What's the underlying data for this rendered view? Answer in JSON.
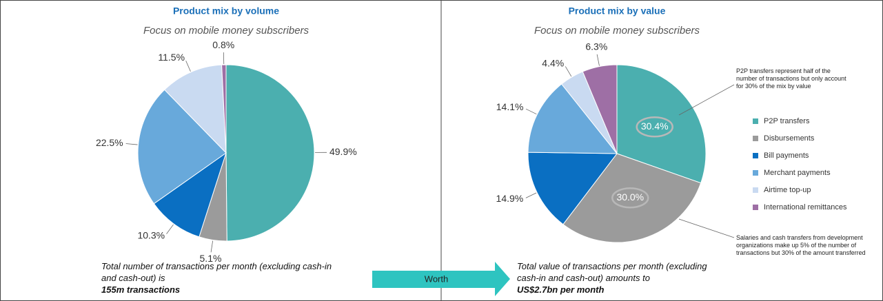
{
  "chart_data": [
    {
      "type": "pie",
      "title": "Product mix by volume",
      "subtitle": "Focus on mobile money subscribers",
      "values": [
        49.9,
        5.1,
        10.3,
        22.5,
        11.5,
        0.8
      ],
      "value_labels": [
        "49.9%",
        "5.1%",
        "10.3%",
        "22.5%",
        "11.5%",
        "0.8%"
      ],
      "colors": [
        "#4bafaf",
        "#9b9b9b",
        "#0a6fc2",
        "#68a9db",
        "#c9daf1",
        "#9e6fa5"
      ],
      "footnote": "Total number of transactions per month (excluding cash-in and cash-out) is",
      "footnote_bold": "155m transactions"
    },
    {
      "type": "pie",
      "title": "Product mix by value",
      "subtitle": "Focus on mobile money subscribers",
      "categories": [
        "P2P transfers",
        "Disbursements",
        "Bill payments",
        "Merchant payments",
        "Airtime top-up",
        "International remittances"
      ],
      "values": [
        30.4,
        30.0,
        14.9,
        14.1,
        4.4,
        6.3
      ],
      "value_labels": [
        "30.4%",
        "30.0%",
        "14.9%",
        "14.1%",
        "4.4%",
        "6.3%"
      ],
      "colors": [
        "#4bafaf",
        "#9b9b9b",
        "#0a6fc2",
        "#68a9db",
        "#c9daf1",
        "#9e6fa5"
      ],
      "legend": "right",
      "annotations": [
        "P2P transfers represent half of the number of transactions but only account for 30% of the mix by value",
        "Salaries and cash transfers from development organizations make up 5% of the number of transactions but 30% of the amount transferred"
      ],
      "footnote": "Total value of transactions per month (excluding cash-in and cash-out) amounts to",
      "footnote_bold": "US$2.7bn per month"
    }
  ],
  "arrow_label": "Worth"
}
